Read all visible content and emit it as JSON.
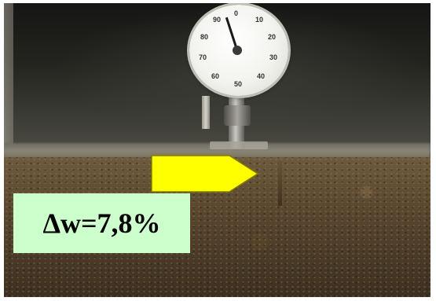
{
  "photo": {
    "subject_icon": "dial-gauge-icon",
    "arrow_color": "#ffff00",
    "arrow_border_color": "#808000",
    "label_bg_color": "#ccffcc"
  },
  "gauge": {
    "ticks": [
      "0",
      "10",
      "20",
      "30",
      "40",
      "50",
      "60",
      "70",
      "80",
      "90"
    ]
  },
  "annotation": {
    "text": "Δw=7,8%"
  }
}
